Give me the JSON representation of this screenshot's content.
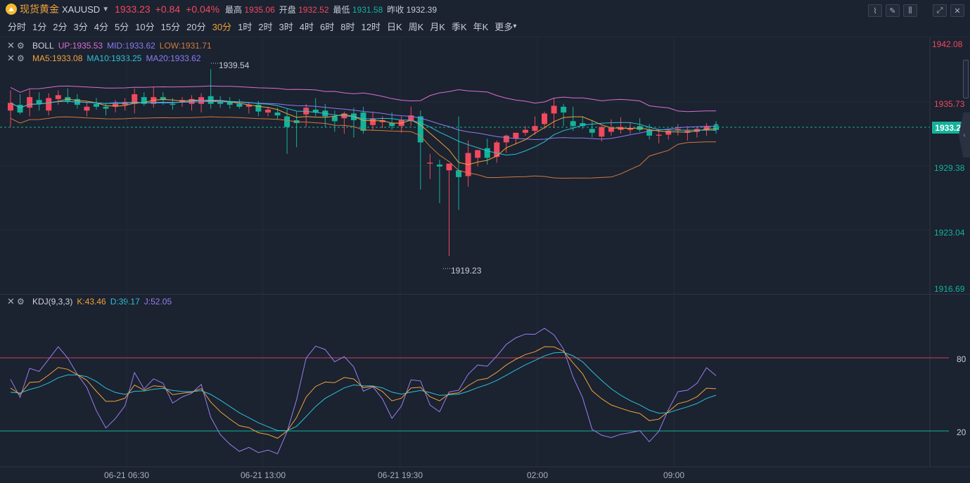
{
  "header": {
    "title": "现货黄金",
    "symbol": "XAUUSD",
    "price": "1933.23",
    "change": "+0.84",
    "change_pct": "+0.04%",
    "high_label": "最高",
    "high_value": "1935.06",
    "open_label": "开盘",
    "open_value": "1932.52",
    "low_label": "最低",
    "low_value": "1931.58",
    "prev_label": "昨收",
    "prev_value": "1932.39"
  },
  "toolbar": {
    "icons": [
      "line-chart-icon",
      "draw-pencil-icon",
      "candle-settings-icon",
      "expand-icon",
      "close-icon"
    ]
  },
  "periods": [
    "分时",
    "1分",
    "2分",
    "3分",
    "4分",
    "5分",
    "10分",
    "15分",
    "20分",
    "30分",
    "1时",
    "2时",
    "3时",
    "4时",
    "6时",
    "8时",
    "12时",
    "日K",
    "周K",
    "月K",
    "季K",
    "年K",
    "更多"
  ],
  "active_period": "30分",
  "boll": {
    "name": "BOLL",
    "up": "UP:1935.53",
    "mid": "MID:1933.62",
    "low": "LOW:1931.71"
  },
  "ma": {
    "ma5": "MA5:1933.08",
    "ma10": "MA10:1933.25",
    "ma20": "MA20:1933.62"
  },
  "kdj": {
    "name": "KDJ(9,3,3)",
    "k": "K:43.46",
    "d": "D:39.17",
    "j": "J:52.05"
  },
  "price_axis": [
    "1942.08",
    "1935.73",
    "1929.38",
    "1923.04",
    "1916.69"
  ],
  "current_price_tag": "1933.23",
  "kdj_axis": [
    "80",
    "20"
  ],
  "high_marker": "1939.54",
  "low_marker": "1919.23",
  "time_axis": [
    "06-21 06:30",
    "06-21 13:00",
    "06-21 19:30",
    "02:00",
    "09:00"
  ],
  "colors": {
    "up": "#f2495e",
    "down": "#13b39a",
    "boll_up": "#d86fd0",
    "boll_mid": "#8b7cf0",
    "boll_low": "#d07a3c",
    "ma5": "#f0a33a",
    "ma10": "#2cc2d8",
    "ma20": "#8b7cf0",
    "kdj_k": "#f0a33a",
    "kdj_d": "#2cc2d8",
    "kdj_j": "#9a7ef0"
  }
}
